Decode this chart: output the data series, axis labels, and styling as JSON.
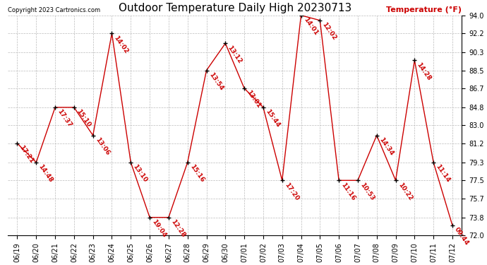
{
  "title": "Outdoor Temperature Daily High 20230713",
  "copyright": "Copyright 2023 Cartronics.com",
  "ylabel": "Temperature (°F)",
  "background_color": "#ffffff",
  "line_color": "#cc0000",
  "marker_color": "#000000",
  "label_color": "#cc0000",
  "dates": [
    "06/19",
    "06/20",
    "06/21",
    "06/22",
    "06/23",
    "06/24",
    "06/25",
    "06/26",
    "06/27",
    "06/28",
    "06/29",
    "06/30",
    "07/01",
    "07/02",
    "07/03",
    "07/04",
    "07/05",
    "07/06",
    "07/07",
    "07/08",
    "07/09",
    "07/10",
    "07/11",
    "07/12"
  ],
  "values": [
    81.2,
    79.3,
    84.8,
    84.8,
    82.0,
    92.2,
    79.3,
    73.8,
    73.8,
    79.3,
    88.5,
    91.2,
    86.7,
    84.8,
    77.5,
    94.0,
    93.5,
    77.5,
    77.5,
    82.0,
    77.5,
    89.5,
    79.3,
    73.0
  ],
  "labels": [
    "17:21",
    "14:48",
    "17:37",
    "15:10",
    "13:06",
    "14:02",
    "13:10",
    "19:04",
    "12:28",
    "15:16",
    "13:54",
    "13:12",
    "13:01",
    "15:44",
    "17:20",
    "14:01",
    "12:02",
    "11:16",
    "10:53",
    "14:34",
    "10:22",
    "14:28",
    "11:14",
    "09:44"
  ],
  "ylim": [
    72.0,
    94.0
  ],
  "yticks": [
    72.0,
    73.8,
    75.7,
    77.5,
    79.3,
    81.2,
    83.0,
    84.8,
    86.7,
    88.5,
    90.3,
    92.2,
    94.0
  ],
  "grid_color": "#bbbbbb",
  "title_fontsize": 11,
  "label_fontsize": 6.5,
  "tick_fontsize": 7,
  "copyright_fontsize": 6,
  "ylabel_fontsize": 8
}
